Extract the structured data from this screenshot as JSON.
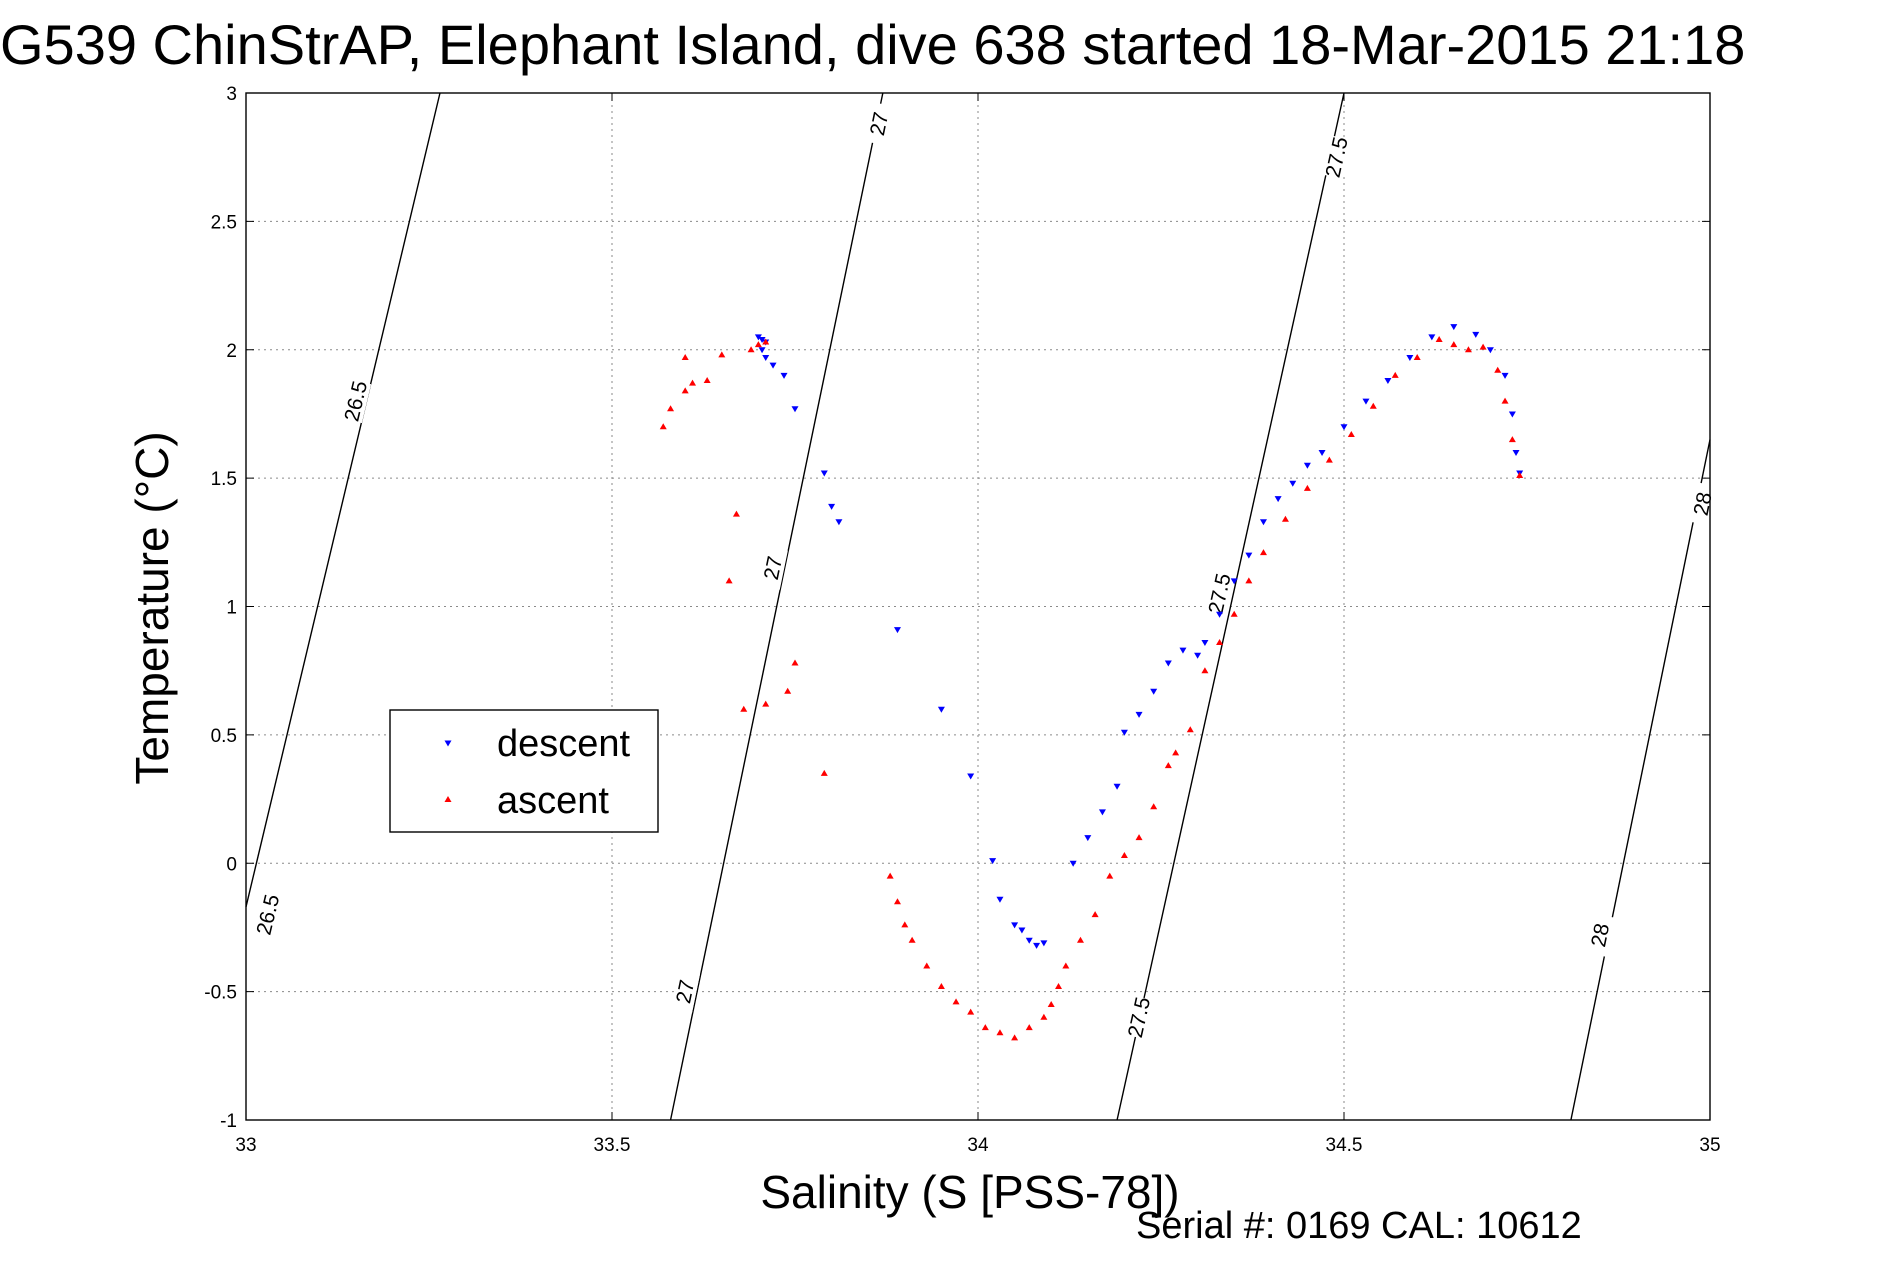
{
  "title": "G539 ChinStrAP, Elephant Island, dive 638 started 18-Mar-2015 21:18",
  "footer": "Serial #: 0169 CAL: 10612",
  "chart_data": {
    "type": "scatter",
    "xlabel": "Salinity (S [PSS-78])",
    "ylabel": "Temperature (°C)",
    "xlim": [
      33,
      35
    ],
    "ylim": [
      -1,
      3
    ],
    "xticks": [
      33,
      33.5,
      34,
      34.5,
      35
    ],
    "xtick_labels": [
      "33",
      "33.5",
      "34",
      "34.5",
      "35"
    ],
    "yticks": [
      -1,
      -0.5,
      0,
      0.5,
      1,
      1.5,
      2,
      2.5,
      3
    ],
    "ytick_labels": [
      "-1",
      "-0.5",
      "0",
      "0.5",
      "1",
      "1.5",
      "2",
      "2.5",
      "3"
    ],
    "grid": true,
    "legend": {
      "placement": "center-left",
      "entries": [
        "descent",
        "ascent"
      ]
    },
    "series": [
      {
        "name": "descent",
        "color": "#0000ff",
        "marker": "triangle-down",
        "points": [
          [
            33.7,
            2.05
          ],
          [
            33.705,
            2.04
          ],
          [
            33.71,
            2.03
          ],
          [
            33.705,
            2.0
          ],
          [
            33.71,
            1.97
          ],
          [
            33.72,
            1.94
          ],
          [
            33.735,
            1.9
          ],
          [
            33.75,
            1.77
          ],
          [
            33.79,
            1.52
          ],
          [
            33.8,
            1.39
          ],
          [
            33.81,
            1.33
          ],
          [
            33.89,
            0.91
          ],
          [
            33.95,
            0.6
          ],
          [
            33.99,
            0.34
          ],
          [
            34.02,
            0.01
          ],
          [
            34.03,
            -0.14
          ],
          [
            34.05,
            -0.24
          ],
          [
            34.06,
            -0.26
          ],
          [
            34.07,
            -0.3
          ],
          [
            34.08,
            -0.32
          ],
          [
            34.09,
            -0.31
          ],
          [
            34.13,
            0.0
          ],
          [
            34.15,
            0.1
          ],
          [
            34.17,
            0.2
          ],
          [
            34.19,
            0.3
          ],
          [
            34.2,
            0.51
          ],
          [
            34.22,
            0.58
          ],
          [
            34.24,
            0.67
          ],
          [
            34.26,
            0.78
          ],
          [
            34.28,
            0.83
          ],
          [
            34.3,
            0.81
          ],
          [
            34.31,
            0.86
          ],
          [
            34.33,
            0.97
          ],
          [
            34.35,
            1.1
          ],
          [
            34.37,
            1.2
          ],
          [
            34.39,
            1.33
          ],
          [
            34.41,
            1.42
          ],
          [
            34.43,
            1.48
          ],
          [
            34.45,
            1.55
          ],
          [
            34.47,
            1.6
          ],
          [
            34.5,
            1.7
          ],
          [
            34.53,
            1.8
          ],
          [
            34.56,
            1.88
          ],
          [
            34.59,
            1.97
          ],
          [
            34.62,
            2.05
          ],
          [
            34.65,
            2.09
          ],
          [
            34.68,
            2.06
          ],
          [
            34.7,
            2.0
          ],
          [
            34.72,
            1.9
          ],
          [
            34.73,
            1.75
          ],
          [
            34.735,
            1.6
          ],
          [
            34.74,
            1.52
          ]
        ]
      },
      {
        "name": "ascent",
        "color": "#ff0000",
        "marker": "triangle-up",
        "points": [
          [
            33.57,
            1.7
          ],
          [
            33.58,
            1.77
          ],
          [
            33.6,
            1.84
          ],
          [
            33.61,
            1.87
          ],
          [
            33.63,
            1.88
          ],
          [
            33.6,
            1.97
          ],
          [
            33.65,
            1.98
          ],
          [
            33.69,
            2.0
          ],
          [
            33.7,
            2.02
          ],
          [
            33.71,
            2.03
          ],
          [
            33.67,
            1.36
          ],
          [
            33.66,
            1.1
          ],
          [
            33.68,
            0.6
          ],
          [
            33.71,
            0.62
          ],
          [
            33.74,
            0.67
          ],
          [
            33.75,
            0.78
          ],
          [
            33.79,
            0.35
          ],
          [
            33.88,
            -0.05
          ],
          [
            33.89,
            -0.15
          ],
          [
            33.9,
            -0.24
          ],
          [
            33.91,
            -0.3
          ],
          [
            33.93,
            -0.4
          ],
          [
            33.95,
            -0.48
          ],
          [
            33.97,
            -0.54
          ],
          [
            33.99,
            -0.58
          ],
          [
            34.01,
            -0.64
          ],
          [
            34.03,
            -0.66
          ],
          [
            34.05,
            -0.68
          ],
          [
            34.07,
            -0.64
          ],
          [
            34.09,
            -0.6
          ],
          [
            34.1,
            -0.55
          ],
          [
            34.11,
            -0.48
          ],
          [
            34.12,
            -0.4
          ],
          [
            34.14,
            -0.3
          ],
          [
            34.16,
            -0.2
          ],
          [
            34.18,
            -0.05
          ],
          [
            34.2,
            0.03
          ],
          [
            34.22,
            0.1
          ],
          [
            34.24,
            0.22
          ],
          [
            34.26,
            0.38
          ],
          [
            34.27,
            0.43
          ],
          [
            34.29,
            0.52
          ],
          [
            34.31,
            0.75
          ],
          [
            34.33,
            0.86
          ],
          [
            34.35,
            0.97
          ],
          [
            34.37,
            1.1
          ],
          [
            34.39,
            1.21
          ],
          [
            34.42,
            1.34
          ],
          [
            34.45,
            1.46
          ],
          [
            34.48,
            1.57
          ],
          [
            34.51,
            1.67
          ],
          [
            34.54,
            1.78
          ],
          [
            34.57,
            1.9
          ],
          [
            34.6,
            1.97
          ],
          [
            34.63,
            2.04
          ],
          [
            34.65,
            2.02
          ],
          [
            34.67,
            2.0
          ],
          [
            34.69,
            2.01
          ],
          [
            34.71,
            1.92
          ],
          [
            34.72,
            1.8
          ],
          [
            34.73,
            1.65
          ],
          [
            34.74,
            1.51
          ]
        ]
      }
    ],
    "contours": [
      {
        "label": "26.5",
        "points": [
          [
            33.0,
            -0.17
          ],
          [
            33.265,
            3.0
          ]
        ],
        "label_positions": [
          [
            33.03,
            -0.2
          ],
          [
            33.15,
            1.8
          ]
        ]
      },
      {
        "label": "27",
        "points": [
          [
            33.58,
            -1.0
          ],
          [
            33.87,
            3.0
          ]
        ],
        "label_positions": [
          [
            33.6,
            -0.5
          ],
          [
            33.72,
            1.15
          ],
          [
            33.865,
            2.88
          ]
        ]
      },
      {
        "label": "27.5",
        "points": [
          [
            34.19,
            -1.0
          ],
          [
            34.5,
            3.0
          ]
        ],
        "label_positions": [
          [
            34.22,
            -0.6
          ],
          [
            34.33,
            1.05
          ],
          [
            34.49,
            2.75
          ]
        ]
      },
      {
        "label": "28",
        "points": [
          [
            34.81,
            -1.0
          ],
          [
            35.0,
            1.65
          ]
        ],
        "label_positions": [
          [
            34.85,
            -0.28
          ],
          [
            34.99,
            1.4
          ]
        ]
      }
    ]
  }
}
